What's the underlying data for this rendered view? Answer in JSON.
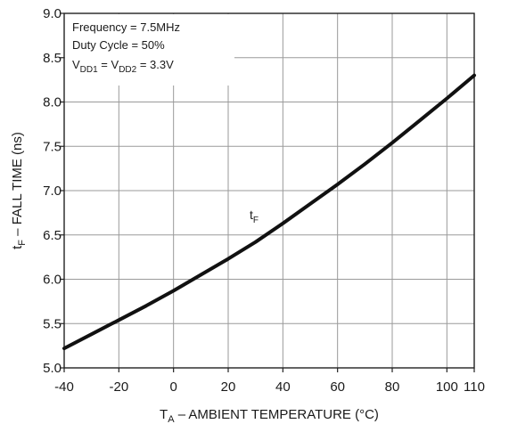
{
  "chart_data": {
    "type": "line",
    "x_ticks": [
      "-40",
      "-20",
      "0",
      "20",
      "40",
      "60",
      "80",
      "100",
      "110"
    ],
    "x_tick_values": [
      -40,
      -20,
      0,
      20,
      40,
      60,
      80,
      100,
      110
    ],
    "y_ticks": [
      "5.0",
      "5.5",
      "6.0",
      "6.5",
      "7.0",
      "7.5",
      "8.0",
      "8.5",
      "9.0"
    ],
    "y_tick_values": [
      5.0,
      5.5,
      6.0,
      6.5,
      7.0,
      7.5,
      8.0,
      8.5,
      9.0
    ],
    "xlim": [
      -40,
      110
    ],
    "ylim": [
      5.0,
      9.0
    ],
    "grid": true,
    "xlabel": {
      "main": "T",
      "sub": "A",
      "rest": " – AMBIENT TEMPERATURE (°C)"
    },
    "ylabel": {
      "main": "t",
      "sub": "F",
      "rest": " – FALL TIME (ns)"
    },
    "annotations": {
      "line1": "Frequency = 7.5MHz",
      "line2": "Duty Cycle = 50%",
      "line3": {
        "a": "V",
        "a_sub": "DD1",
        "mid": " = V",
        "b_sub": "DD2",
        "end": " = 3.3V"
      }
    },
    "series": [
      {
        "label": {
          "main": "t",
          "sub": "F"
        },
        "x": [
          -40,
          -30,
          -20,
          -10,
          0,
          10,
          20,
          30,
          40,
          50,
          60,
          70,
          80,
          90,
          100,
          110
        ],
        "y": [
          5.22,
          5.38,
          5.54,
          5.7,
          5.87,
          6.05,
          6.23,
          6.42,
          6.63,
          6.85,
          7.07,
          7.3,
          7.54,
          7.79,
          8.04,
          8.3
        ]
      }
    ]
  }
}
